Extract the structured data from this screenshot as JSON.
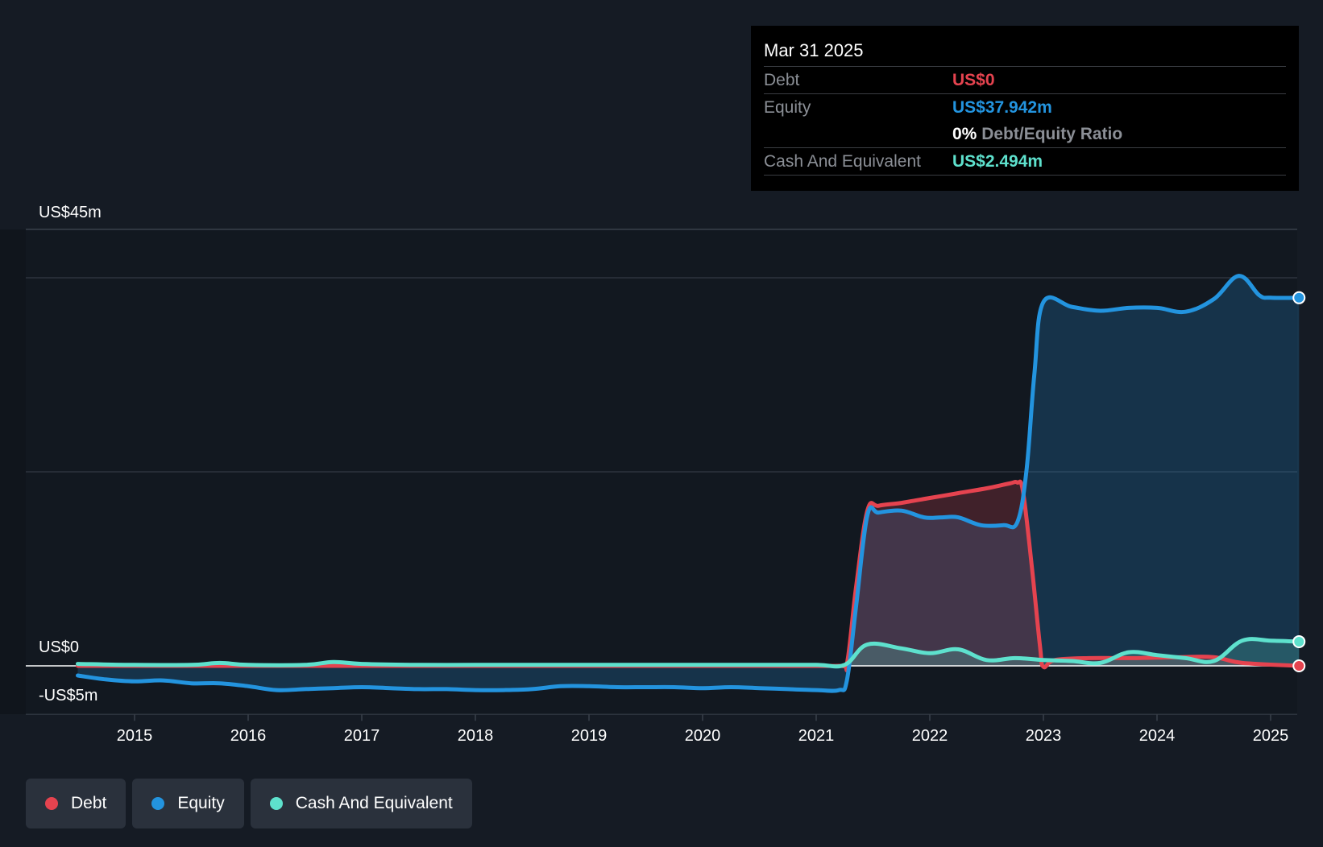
{
  "chart_data": {
    "type": "area",
    "y_ticks": {
      "top": "US$45m",
      "zero": "US$0",
      "bottom": "-US$5m"
    },
    "ylim": [
      -5,
      45
    ],
    "xlim": [
      2014.5,
      2025.25
    ],
    "x_ticks": [
      "2015",
      "2016",
      "2017",
      "2018",
      "2019",
      "2020",
      "2021",
      "2022",
      "2023",
      "2024",
      "2025"
    ],
    "grid": true,
    "legend_position": "bottom-left",
    "series": [
      {
        "name": "Debt",
        "color": "#e5434f",
        "points": [
          [
            2014.5,
            0
          ],
          [
            2015.5,
            0
          ],
          [
            2016.5,
            0
          ],
          [
            2017.5,
            0
          ],
          [
            2018.5,
            0
          ],
          [
            2019.5,
            0
          ],
          [
            2020.5,
            0
          ],
          [
            2021.2,
            0
          ],
          [
            2021.27,
            0.2
          ],
          [
            2021.35,
            8
          ],
          [
            2021.45,
            16
          ],
          [
            2021.55,
            16.5
          ],
          [
            2021.75,
            16.8
          ],
          [
            2022.0,
            17.3
          ],
          [
            2022.25,
            17.8
          ],
          [
            2022.5,
            18.3
          ],
          [
            2022.7,
            18.8
          ],
          [
            2022.77,
            18.9
          ],
          [
            2022.82,
            18
          ],
          [
            2022.9,
            10
          ],
          [
            2022.97,
            2
          ],
          [
            2023.0,
            -0.1
          ],
          [
            2023.1,
            0.6
          ],
          [
            2023.4,
            0.8
          ],
          [
            2023.8,
            0.8
          ],
          [
            2024.2,
            0.9
          ],
          [
            2024.5,
            0.9
          ],
          [
            2024.75,
            0.3
          ],
          [
            2025.25,
            0
          ]
        ]
      },
      {
        "name": "Equity",
        "color": "#2394df",
        "points": [
          [
            2014.5,
            -1
          ],
          [
            2014.75,
            -1.4
          ],
          [
            2015.0,
            -1.6
          ],
          [
            2015.25,
            -1.5
          ],
          [
            2015.5,
            -1.8
          ],
          [
            2015.75,
            -1.8
          ],
          [
            2016.0,
            -2.1
          ],
          [
            2016.25,
            -2.5
          ],
          [
            2016.5,
            -2.4
          ],
          [
            2016.75,
            -2.3
          ],
          [
            2017.0,
            -2.2
          ],
          [
            2017.25,
            -2.3
          ],
          [
            2017.5,
            -2.4
          ],
          [
            2017.75,
            -2.4
          ],
          [
            2018.0,
            -2.5
          ],
          [
            2018.25,
            -2.5
          ],
          [
            2018.5,
            -2.4
          ],
          [
            2018.75,
            -2.1
          ],
          [
            2019.0,
            -2.1
          ],
          [
            2019.25,
            -2.2
          ],
          [
            2019.5,
            -2.2
          ],
          [
            2019.75,
            -2.2
          ],
          [
            2020.0,
            -2.3
          ],
          [
            2020.25,
            -2.2
          ],
          [
            2020.5,
            -2.3
          ],
          [
            2020.75,
            -2.4
          ],
          [
            2021.0,
            -2.5
          ],
          [
            2021.2,
            -2.5
          ],
          [
            2021.27,
            -1.5
          ],
          [
            2021.35,
            6
          ],
          [
            2021.45,
            15.5
          ],
          [
            2021.55,
            15.8
          ],
          [
            2021.75,
            16.0
          ],
          [
            2021.95,
            15.3
          ],
          [
            2022.1,
            15.3
          ],
          [
            2022.25,
            15.3
          ],
          [
            2022.45,
            14.5
          ],
          [
            2022.65,
            14.5
          ],
          [
            2022.77,
            14.8
          ],
          [
            2022.85,
            20
          ],
          [
            2022.92,
            30
          ],
          [
            2023.0,
            37.5
          ],
          [
            2023.25,
            37.0
          ],
          [
            2023.5,
            36.6
          ],
          [
            2023.75,
            36.9
          ],
          [
            2024.0,
            36.9
          ],
          [
            2024.25,
            36.5
          ],
          [
            2024.5,
            37.8
          ],
          [
            2024.72,
            40.2
          ],
          [
            2024.9,
            38.2
          ],
          [
            2025.0,
            37.942
          ],
          [
            2025.25,
            37.942
          ]
        ]
      },
      {
        "name": "Cash And Equivalent",
        "color": "#5ee1cd",
        "points": [
          [
            2014.5,
            0.2
          ],
          [
            2015.0,
            0.1
          ],
          [
            2015.5,
            0.1
          ],
          [
            2015.75,
            0.3
          ],
          [
            2016.0,
            0.1
          ],
          [
            2016.5,
            0.1
          ],
          [
            2016.75,
            0.4
          ],
          [
            2017.0,
            0.2
          ],
          [
            2017.5,
            0.1
          ],
          [
            2018.0,
            0.1
          ],
          [
            2018.5,
            0.1
          ],
          [
            2019.0,
            0.1
          ],
          [
            2019.5,
            0.1
          ],
          [
            2020.0,
            0.1
          ],
          [
            2020.5,
            0.1
          ],
          [
            2021.0,
            0.1
          ],
          [
            2021.25,
            0.1
          ],
          [
            2021.45,
            2.2
          ],
          [
            2021.75,
            1.8
          ],
          [
            2022.0,
            1.3
          ],
          [
            2022.25,
            1.7
          ],
          [
            2022.5,
            0.6
          ],
          [
            2022.75,
            0.8
          ],
          [
            2023.0,
            0.6
          ],
          [
            2023.25,
            0.5
          ],
          [
            2023.5,
            0.3
          ],
          [
            2023.75,
            1.4
          ],
          [
            2024.0,
            1.1
          ],
          [
            2024.25,
            0.8
          ],
          [
            2024.5,
            0.5
          ],
          [
            2024.75,
            2.6
          ],
          [
            2025.0,
            2.6
          ],
          [
            2025.25,
            2.494
          ]
        ]
      }
    ],
    "tooltip": {
      "date": "Mar 31 2025",
      "rows": [
        {
          "label": "Debt",
          "value": "US$0",
          "color": "#e5434f"
        },
        {
          "label": "Equity",
          "value": "US$37.942m",
          "color": "#2394df"
        },
        {
          "ratio_value": "0%",
          "ratio_label": "Debt/Equity Ratio"
        },
        {
          "label": "Cash And Equivalent",
          "value": "US$2.494m",
          "color": "#5ee1cd"
        }
      ]
    }
  },
  "legend": [
    {
      "label": "Debt",
      "color": "#e5434f"
    },
    {
      "label": "Equity",
      "color": "#2394df"
    },
    {
      "label": "Cash And Equivalent",
      "color": "#5ee1cd"
    }
  ]
}
